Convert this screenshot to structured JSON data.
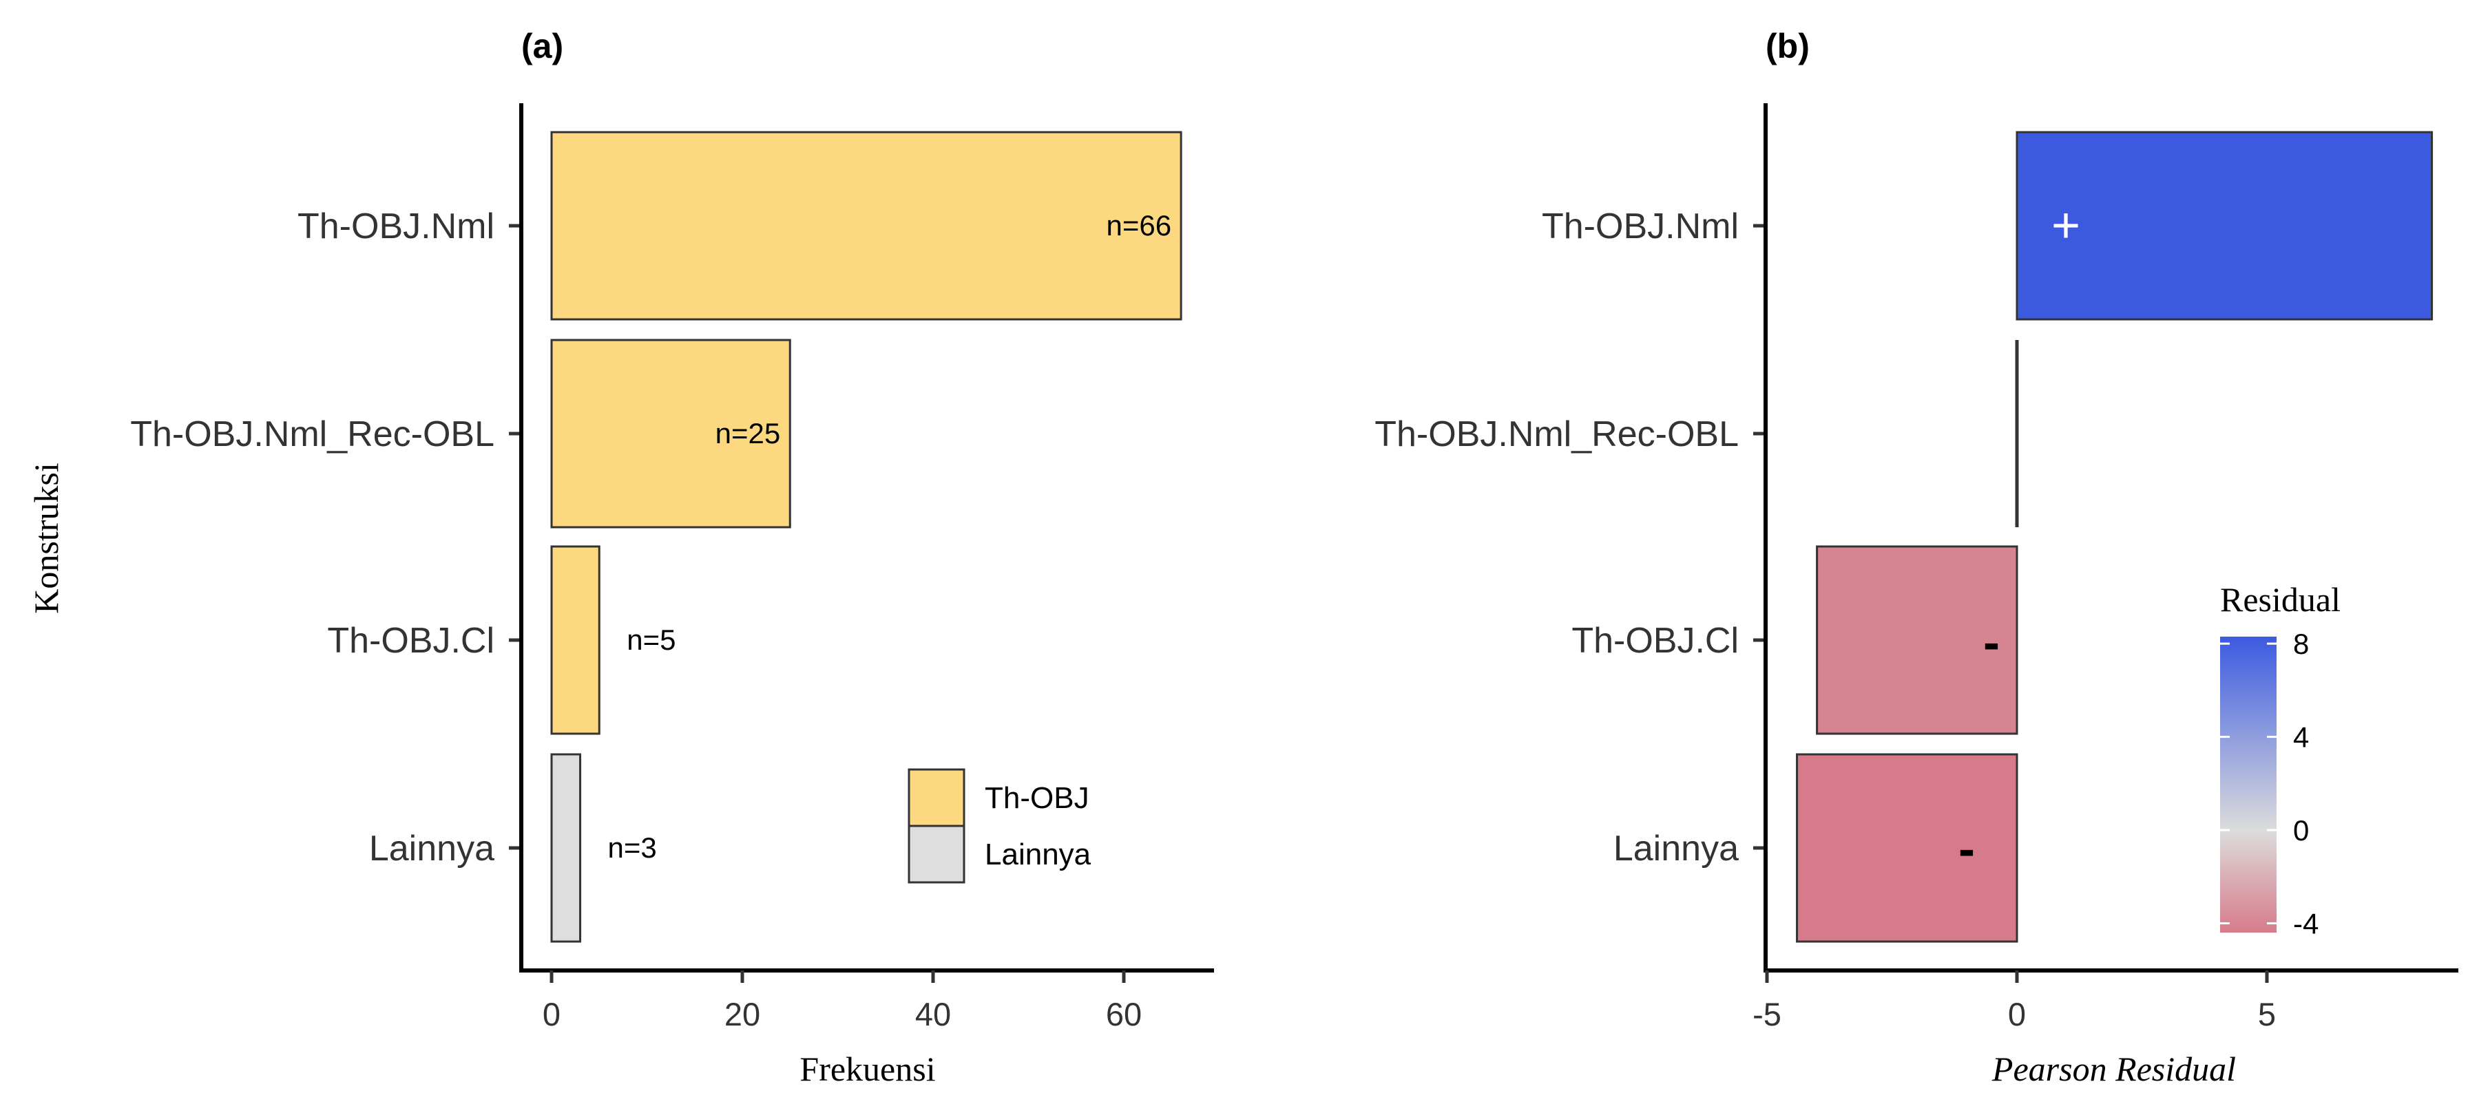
{
  "chart_data": [
    {
      "type": "bar",
      "orientation": "horizontal",
      "panel_label": "(a)",
      "categories": [
        "Th-OBJ.Nml",
        "Th-OBJ.Nml_Rec-OBL",
        "Th-OBJ.Cl",
        "Lainnya"
      ],
      "values": [
        66,
        25,
        5,
        3
      ],
      "groups": [
        "Th-OBJ",
        "Th-OBJ",
        "Th-OBJ",
        "Lainnya"
      ],
      "data_labels": [
        "n=66",
        "n=25",
        "n=5",
        "n=3"
      ],
      "xlabel": "Frekuensi",
      "ylabel": "Konstruksi",
      "xlim": [
        -3,
        69
      ],
      "xticks": [
        0,
        20,
        40,
        60
      ],
      "xtick_labels": [
        "0",
        "20",
        "40",
        "60"
      ],
      "legend": {
        "placement": "bottom-right",
        "entries": [
          {
            "label": "Th-OBJ",
            "color": "#fcd980"
          },
          {
            "label": "Lainnya",
            "color": "#dedede"
          }
        ]
      },
      "grid": false
    },
    {
      "type": "bar",
      "orientation": "horizontal",
      "panel_label": "(b)",
      "categories": [
        "Th-OBJ.Nml",
        "Th-OBJ.Nml_Rec-OBL",
        "Th-OBJ.Cl",
        "Lainnya"
      ],
      "values": [
        8.3,
        0.0,
        -4.0,
        -4.4
      ],
      "signs": [
        "+",
        "",
        "-",
        "-"
      ],
      "xlabel": "Pearson Residual",
      "xlim": [
        -5,
        8.7
      ],
      "xticks": [
        -5,
        0,
        5
      ],
      "xtick_labels": [
        "-5",
        "0",
        "5"
      ],
      "colorbar": {
        "title": "Residual",
        "placement": "bottom-right",
        "range": [
          -4.4,
          8.3
        ],
        "ticks": [
          8,
          4,
          0,
          -4
        ],
        "tick_labels": [
          "8",
          "4",
          "0",
          "-4"
        ],
        "low_color": "#d77b8a",
        "mid_color": "#dcdcdc",
        "high_color": "#3c5ae0"
      },
      "grid": false
    }
  ]
}
